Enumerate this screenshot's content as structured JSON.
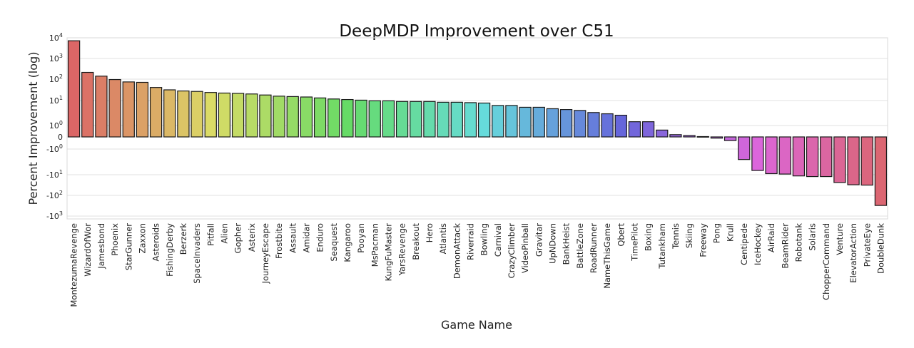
{
  "chart_data": {
    "type": "bar",
    "title": "DeepMDP Improvement over C51",
    "xlabel": "Game Name",
    "ylabel": "Percent Improvement (log)",
    "yscale": "symlog",
    "ylim": [
      -1400,
      12000
    ],
    "grid": true,
    "y_ticks": [
      {
        "value": 10000,
        "base": "10",
        "exp": "4"
      },
      {
        "value": 1000,
        "base": "10",
        "exp": "3"
      },
      {
        "value": 100,
        "base": "10",
        "exp": "2"
      },
      {
        "value": 10,
        "base": "10",
        "exp": "1"
      },
      {
        "value": 1,
        "base": "10",
        "exp": "0"
      },
      {
        "value": 0,
        "base": "0",
        "exp": ""
      },
      {
        "value": -1,
        "base": "-10",
        "exp": "0"
      },
      {
        "value": -10,
        "base": "-10",
        "exp": "1"
      },
      {
        "value": -100,
        "base": "-10",
        "exp": "2"
      },
      {
        "value": -1000,
        "base": "-10",
        "exp": "3"
      }
    ],
    "categories": [
      "MontezumaRevenge",
      "WizardOfWor",
      "Jamesbond",
      "Phoenix",
      "StarGunner",
      "Zaxxon",
      "Asteroids",
      "FishingDerby",
      "Berzerk",
      "SpaceInvaders",
      "Pitfall",
      "Alien",
      "Gopher",
      "Asterix",
      "JourneyEscape",
      "Frostbite",
      "Assault",
      "Amidar",
      "Enduro",
      "Seaquest",
      "Kangaroo",
      "Pooyan",
      "MsPacman",
      "KungFuMaster",
      "YarsRevenge",
      "Breakout",
      "Hero",
      "Atlantis",
      "DemonAttack",
      "Riverraid",
      "Bowling",
      "Carnival",
      "CrazyClimber",
      "VideoPinball",
      "Gravitar",
      "UpNDown",
      "BankHeist",
      "BattleZone",
      "RoadRunner",
      "NameThisGame",
      "Qbert",
      "TimePilot",
      "Boxing",
      "Tutankham",
      "Tennis",
      "Skiing",
      "Freeway",
      "Pong",
      "Krull",
      "Centipede",
      "IceHockey",
      "AirRaid",
      "BeamRider",
      "Robotank",
      "Solaris",
      "ChopperCommand",
      "Venture",
      "ElevatorAction",
      "PrivateEye",
      "DoubleDunk"
    ],
    "values": [
      8500,
      290,
      195,
      135,
      105,
      100,
      58,
      45,
      40,
      38,
      34,
      32,
      31,
      29,
      26,
      23,
      22,
      21,
      19,
      17,
      16,
      15,
      14,
      14,
      13,
      13,
      13,
      12,
      12,
      11.5,
      11,
      8.5,
      8.5,
      7,
      7,
      6,
      5.5,
      5,
      4,
      3.5,
      3,
      1.5,
      1.5,
      0.6,
      0.2,
      0.12,
      0.03,
      -0.1,
      -0.3,
      -3.5,
      -13,
      -19,
      -20,
      -25,
      -27,
      -27,
      -55,
      -72,
      -75,
      -860
    ]
  }
}
